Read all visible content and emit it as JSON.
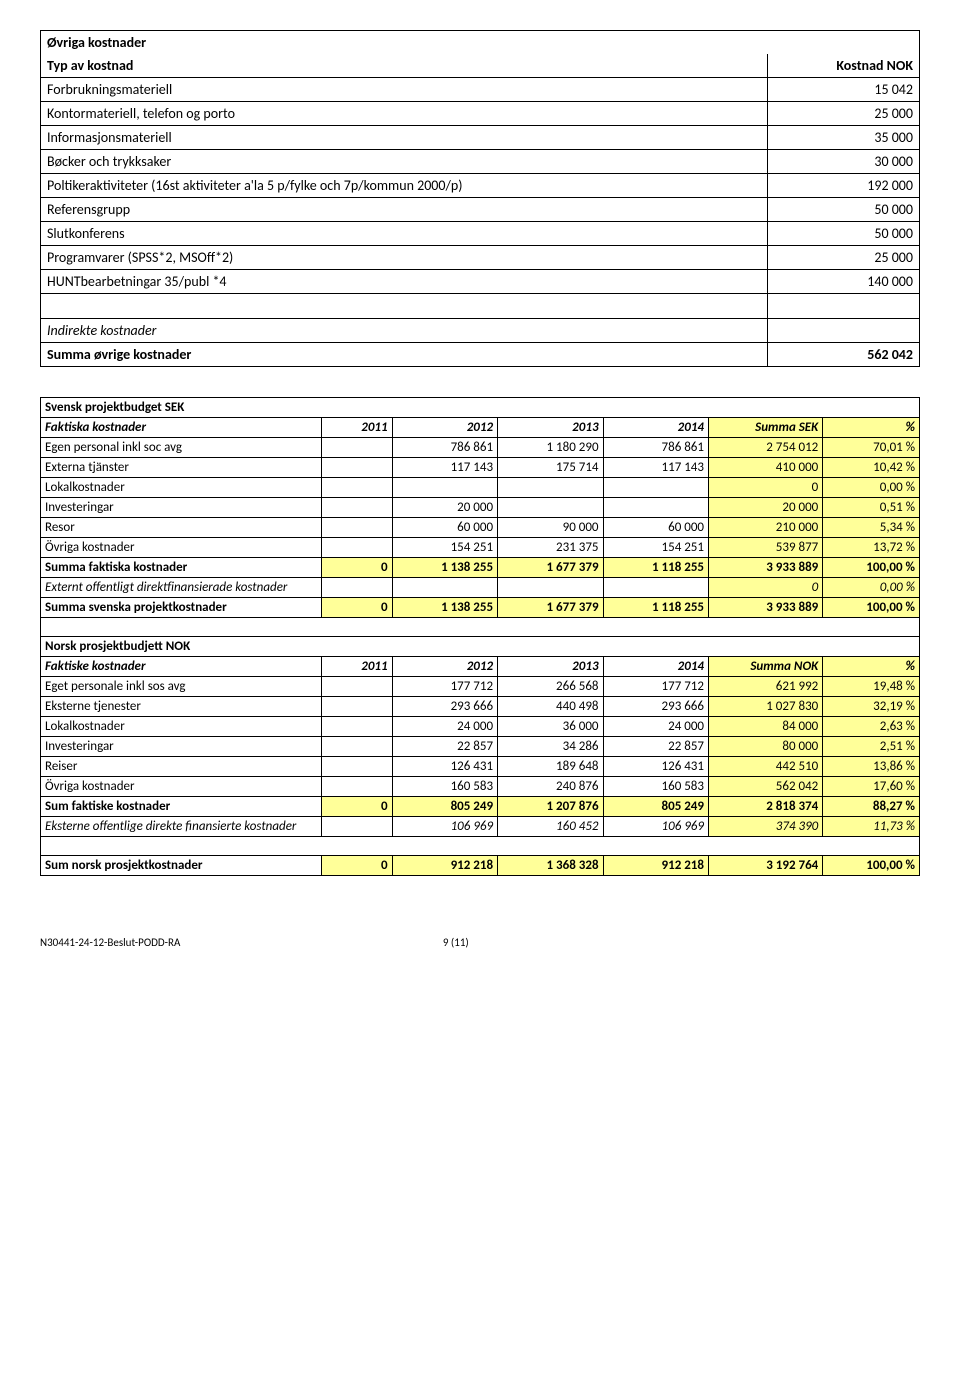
{
  "table1": {
    "title": "Øvriga kostnader",
    "col_label": "Typ av kostnad",
    "col_value": "Kostnad NOK",
    "rows": [
      {
        "label": "Forbrukningsmateriell",
        "value": "15 042"
      },
      {
        "label": "Kontormateriell, telefon og porto",
        "value": "25 000"
      },
      {
        "label": "Informasjonsmateriell",
        "value": "35 000"
      },
      {
        "label": "Bøcker och trykksaker",
        "value": "30 000"
      },
      {
        "label": "Poltikeraktiviteter (16st aktiviteter a'la 5 p/fylke och 7p/kommun 2000/p)",
        "value": "192 000"
      },
      {
        "label": "Referensgrupp",
        "value": "50 000"
      },
      {
        "label": "Slutkonferens",
        "value": "50 000"
      },
      {
        "label": "Programvarer (SPSS*2, MSOff*2)",
        "value": "25 000"
      },
      {
        "label": "HUNTbearbetningar 35/publ *4",
        "value": "140 000"
      }
    ],
    "indirect_label": "Indirekte kostnader",
    "sum_label": "Summa øvrige kostnader",
    "sum_value": "562 042"
  },
  "table2": {
    "sek": {
      "title": "Svensk projektbudget SEK",
      "header": [
        "Faktiska kostnader",
        "2011",
        "2012",
        "2013",
        "2014",
        "Summa SEK",
        "%"
      ],
      "rows": [
        {
          "label": "Egen personal inkl soc avg",
          "c": [
            "",
            "786 861",
            "1 180 290",
            "786 861",
            "2 754 012",
            "70,01 %"
          ],
          "ylw": [
            4,
            5
          ]
        },
        {
          "label": "Externa tjänster",
          "c": [
            "",
            "117 143",
            "175 714",
            "117 143",
            "410 000",
            "10,42 %"
          ],
          "ylw": [
            4,
            5
          ]
        },
        {
          "label": "Lokalkostnader",
          "c": [
            "",
            "",
            "",
            "",
            "0",
            "0,00 %"
          ],
          "ylw": [
            4,
            5
          ]
        },
        {
          "label": "Investeringar",
          "c": [
            "",
            "20 000",
            "",
            "",
            "20 000",
            "0,51 %"
          ],
          "ylw": [
            4,
            5
          ]
        },
        {
          "label": "Resor",
          "c": [
            "",
            "60 000",
            "90 000",
            "60 000",
            "210 000",
            "5,34 %"
          ],
          "ylw": [
            4,
            5
          ]
        },
        {
          "label": "Övriga kostnader",
          "c": [
            "",
            "154 251",
            "231 375",
            "154 251",
            "539 877",
            "13,72 %"
          ],
          "ylw": [
            4,
            5
          ]
        },
        {
          "label": "Summa faktiska kostnader",
          "c": [
            "0",
            "1 138 255",
            "1 677 379",
            "1 118 255",
            "3 933 889",
            "100,00 %"
          ],
          "bold": true,
          "ylw": [
            0,
            1,
            2,
            3,
            4,
            5
          ]
        },
        {
          "label": "Externt offentligt direktfinansierade kostnader",
          "c": [
            "",
            "",
            "",
            "",
            "0",
            "0,00 %"
          ],
          "italic": true,
          "ylw": [
            4,
            5
          ]
        },
        {
          "label": "Summa svenska projektkostnader",
          "c": [
            "0",
            "1 138 255",
            "1 677 379",
            "1 118 255",
            "3 933 889",
            "100,00 %"
          ],
          "bold": true,
          "ylw": [
            0,
            1,
            2,
            3,
            4,
            5
          ]
        }
      ]
    },
    "nok": {
      "title": "Norsk prosjektbudjett NOK",
      "header": [
        "Faktiske kostnader",
        "2011",
        "2012",
        "2013",
        "2014",
        "Summa NOK",
        "%"
      ],
      "rows": [
        {
          "label": "Eget personale inkl sos avg",
          "c": [
            "",
            "177 712",
            "266 568",
            "177 712",
            "621 992",
            "19,48 %"
          ],
          "ylw": [
            4,
            5
          ]
        },
        {
          "label": "Eksterne tjenester",
          "c": [
            "",
            "293 666",
            "440 498",
            "293 666",
            "1 027 830",
            "32,19 %"
          ],
          "ylw": [
            4,
            5
          ]
        },
        {
          "label": "Lokalkostnader",
          "c": [
            "",
            "24 000",
            "36 000",
            "24 000",
            "84 000",
            "2,63 %"
          ],
          "ylw": [
            4,
            5
          ]
        },
        {
          "label": "Investeringar",
          "c": [
            "",
            "22 857",
            "34 286",
            "22 857",
            "80 000",
            "2,51 %"
          ],
          "ylw": [
            4,
            5
          ]
        },
        {
          "label": "Reiser",
          "c": [
            "",
            "126 431",
            "189 648",
            "126 431",
            "442 510",
            "13,86 %"
          ],
          "ylw": [
            4,
            5
          ]
        },
        {
          "label": "Övriga kostnader",
          "c": [
            "",
            "160 583",
            "240 876",
            "160 583",
            "562 042",
            "17,60 %"
          ],
          "ylw": [
            4,
            5
          ]
        },
        {
          "label": "Sum faktiske kostnader",
          "c": [
            "0",
            "805 249",
            "1 207 876",
            "805 249",
            "2 818 374",
            "88,27 %"
          ],
          "bold": true,
          "ylw": [
            0,
            1,
            2,
            3,
            4,
            5
          ]
        },
        {
          "label": "Eksterne offentlige direkte finansierte kostnader",
          "c": [
            "",
            "106 969",
            "160 452",
            "106 969",
            "374 390",
            "11,73 %"
          ],
          "italic": true,
          "ylw": [
            4,
            5
          ]
        }
      ],
      "final": {
        "label": "Sum norsk prosjektkostnader",
        "c": [
          "0",
          "912 218",
          "1 368 328",
          "912 218",
          "3 192 764",
          "100,00 %"
        ]
      }
    }
  },
  "footer": {
    "doc": "N30441-24-12-Beslut-PODD-RA",
    "page": "9 (11)"
  }
}
